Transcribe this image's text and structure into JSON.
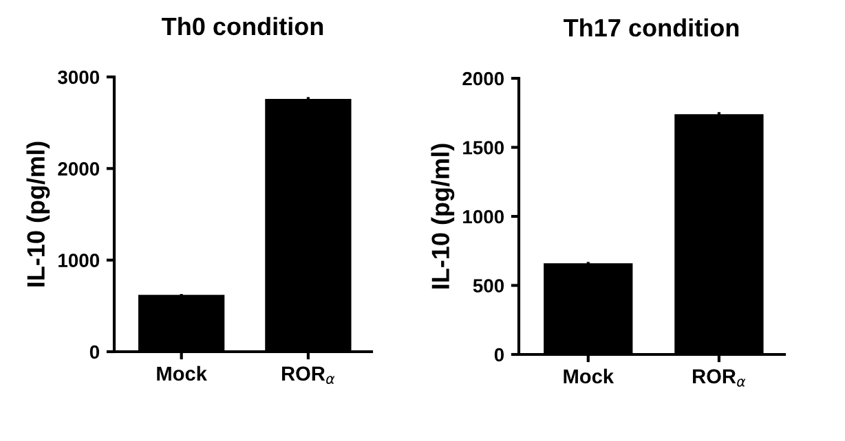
{
  "chart_data": [
    {
      "type": "bar",
      "title": "Th0 condition",
      "ylabel": "IL-10 (pg/ml)",
      "categories": [
        "Mock",
        "ROR$_{α}$"
      ],
      "values": [
        620,
        2760
      ],
      "errors": [
        10,
        20
      ],
      "color": "#000000",
      "ylim": [
        0,
        3000
      ],
      "yticks": [
        0,
        1000,
        2000,
        3000
      ],
      "grid": false
    },
    {
      "type": "bar",
      "title": "Th17 condition",
      "ylabel": "IL-10 (pg/ml)",
      "categories": [
        "Mock",
        "ROR$_{α}$"
      ],
      "values": [
        660,
        1740
      ],
      "errors": [
        10,
        15
      ],
      "color": "#000000",
      "ylim": [
        0,
        2000
      ],
      "yticks": [
        0,
        500,
        1000,
        1500,
        2000
      ],
      "grid": false
    }
  ]
}
